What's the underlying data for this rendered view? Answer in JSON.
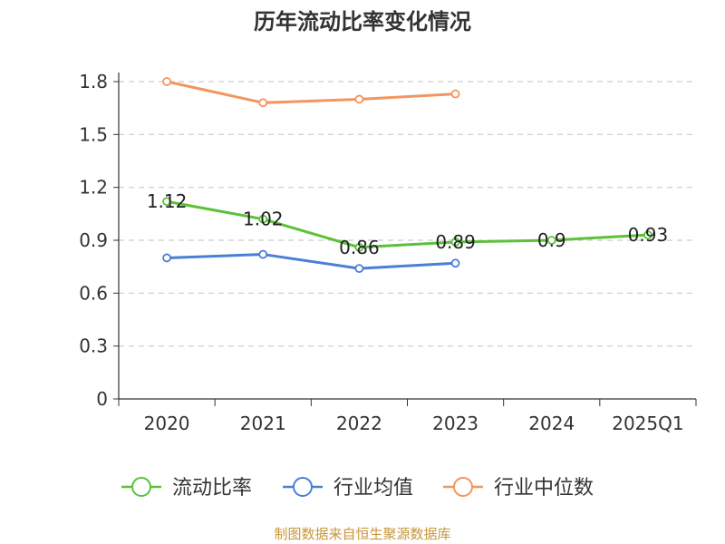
{
  "chart_data": {
    "type": "line",
    "title": "历年流动比率变化情况",
    "categories": [
      "2020",
      "2021",
      "2022",
      "2023",
      "2024",
      "2025Q1"
    ],
    "ylim": [
      0,
      1.8
    ],
    "yticks": [
      "0",
      "0.3",
      "0.6",
      "0.9",
      "1.2",
      "1.5",
      "1.8"
    ],
    "ytick_values": [
      0,
      0.3,
      0.6,
      0.9,
      1.2,
      1.5,
      1.8
    ],
    "grid": true,
    "legend_position": "bottom",
    "series": [
      {
        "name": "流动比率",
        "color": "#5cc13a",
        "values": [
          1.12,
          1.02,
          0.86,
          0.89,
          0.9,
          0.93
        ],
        "labels": [
          "1.12",
          "1.02",
          "0.86",
          "0.89",
          "0.9",
          "0.93"
        ]
      },
      {
        "name": "行业均值",
        "color": "#4a7fd6",
        "values": [
          0.8,
          0.82,
          0.74,
          0.77,
          null,
          null
        ]
      },
      {
        "name": "行业中位数",
        "color": "#f39560",
        "values": [
          1.8,
          1.68,
          1.7,
          1.73,
          null,
          null
        ]
      }
    ],
    "source": "制图数据来自恒生聚源数据库"
  }
}
